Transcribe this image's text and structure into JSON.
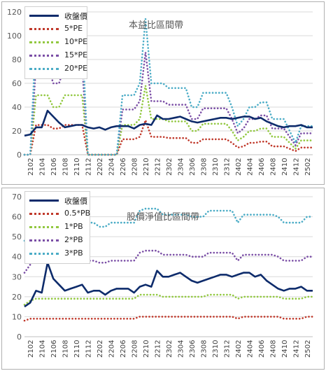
{
  "chart_data": [
    {
      "type": "line",
      "title": "本益比區間帶",
      "ylim": [
        0,
        120
      ],
      "yticks": [
        0,
        20,
        40,
        60,
        80,
        100,
        120
      ],
      "grid": true,
      "legend_position": "top-left",
      "x": [
        "2101",
        "2102",
        "2103",
        "2104",
        "2105",
        "2106",
        "2107",
        "2108",
        "2109",
        "2110",
        "2111",
        "2112",
        "2201",
        "2202",
        "2203",
        "2204",
        "2205",
        "2206",
        "2207",
        "2208",
        "2209",
        "2210",
        "2211",
        "2212",
        "2301",
        "2302",
        "2303",
        "2304",
        "2305",
        "2306",
        "2307",
        "2308",
        "2309",
        "2310",
        "2311",
        "2312",
        "2401",
        "2402",
        "2403",
        "2404",
        "2405",
        "2406",
        "2407",
        "2408",
        "2409",
        "2410",
        "2411",
        "2412",
        "2501",
        "2502",
        "2503"
      ],
      "x_tick_labels": [
        "2102",
        "2104",
        "2106",
        "2108",
        "2110",
        "2112",
        "2202",
        "2204",
        "2206",
        "2208",
        "2210",
        "2212",
        "2302",
        "2304",
        "2306",
        "2308",
        "2310",
        "2312",
        "2402",
        "2404",
        "2406",
        "2408",
        "2410",
        "2412",
        "2502"
      ],
      "series": [
        {
          "name": "收盤價",
          "color": "#0d2b6b",
          "style": "solid",
          "values": [
            16,
            17,
            23,
            23,
            37,
            32,
            27,
            23,
            24,
            25,
            25,
            23,
            22,
            23,
            21,
            23,
            24,
            24,
            24,
            22,
            25,
            26,
            25,
            33,
            30,
            30,
            31,
            32,
            30,
            28,
            27,
            28,
            29,
            30,
            31,
            31,
            30,
            31,
            32,
            32,
            30,
            31,
            28,
            26,
            24,
            23,
            24,
            24,
            25,
            23,
            23
          ]
        },
        {
          "name": "5*PE",
          "color": "#c0392b",
          "style": "dotted",
          "values": [
            0,
            0,
            25,
            25,
            25,
            22,
            22,
            25,
            25,
            25,
            25,
            0,
            0,
            0,
            0,
            0,
            0,
            13,
            13,
            13,
            15,
            29,
            15,
            15,
            15,
            14,
            14,
            14,
            14,
            10,
            10,
            13,
            13,
            13,
            13,
            13,
            10,
            6,
            7,
            10,
            10,
            11,
            11,
            7,
            7,
            7,
            5,
            3,
            6,
            6,
            6
          ]
        },
        {
          "name": "10*PE",
          "color": "#92c840",
          "style": "dotted",
          "values": [
            0,
            0,
            50,
            50,
            50,
            40,
            40,
            50,
            50,
            50,
            50,
            0,
            0,
            0,
            0,
            0,
            0,
            25,
            25,
            25,
            30,
            58,
            30,
            30,
            30,
            28,
            28,
            28,
            28,
            20,
            20,
            26,
            26,
            26,
            26,
            26,
            20,
            12,
            15,
            20,
            20,
            22,
            22,
            15,
            15,
            15,
            10,
            5,
            12,
            12,
            12
          ]
        },
        {
          "name": "15*PE",
          "color": "#7b4fa6",
          "style": "dotted",
          "values": [
            0,
            0,
            75,
            75,
            75,
            60,
            60,
            75,
            75,
            75,
            75,
            0,
            0,
            0,
            0,
            0,
            0,
            38,
            38,
            38,
            45,
            86,
            45,
            45,
            45,
            42,
            42,
            42,
            42,
            30,
            30,
            39,
            39,
            39,
            39,
            39,
            30,
            18,
            22,
            30,
            30,
            33,
            33,
            22,
            22,
            22,
            15,
            8,
            18,
            18,
            18
          ]
        },
        {
          "name": "20*PE",
          "color": "#4bacc6",
          "style": "dotted",
          "values": [
            0,
            0,
            100,
            100,
            100,
            80,
            80,
            100,
            100,
            100,
            100,
            0,
            0,
            0,
            0,
            0,
            0,
            50,
            50,
            50,
            60,
            114,
            60,
            60,
            60,
            56,
            56,
            56,
            56,
            40,
            40,
            52,
            52,
            52,
            52,
            52,
            40,
            24,
            30,
            40,
            40,
            44,
            44,
            30,
            30,
            30,
            20,
            10,
            24,
            24,
            24
          ]
        }
      ]
    },
    {
      "type": "line",
      "title": "股價淨值比區間帶",
      "ylim": [
        0,
        70
      ],
      "yticks": [
        0,
        10,
        20,
        30,
        40,
        50,
        60,
        70
      ],
      "grid": true,
      "legend_position": "top-left",
      "x": [
        "2101",
        "2102",
        "2103",
        "2104",
        "2105",
        "2106",
        "2107",
        "2108",
        "2109",
        "2110",
        "2111",
        "2112",
        "2201",
        "2202",
        "2203",
        "2204",
        "2205",
        "2206",
        "2207",
        "2208",
        "2209",
        "2210",
        "2211",
        "2212",
        "2301",
        "2302",
        "2303",
        "2304",
        "2305",
        "2306",
        "2307",
        "2308",
        "2309",
        "2310",
        "2311",
        "2312",
        "2401",
        "2402",
        "2403",
        "2404",
        "2405",
        "2406",
        "2407",
        "2408",
        "2409",
        "2410",
        "2411",
        "2412",
        "2501",
        "2502",
        "2503"
      ],
      "x_tick_labels": [
        "2102",
        "2104",
        "2106",
        "2108",
        "2110",
        "2112",
        "2202",
        "2204",
        "2206",
        "2208",
        "2210",
        "2212",
        "2302",
        "2304",
        "2306",
        "2308",
        "2310",
        "2312",
        "2402",
        "2404",
        "2406",
        "2408",
        "2410",
        "2412",
        "2502"
      ],
      "series": [
        {
          "name": "收盤價",
          "color": "#0d2b6b",
          "style": "solid",
          "values": [
            15,
            17,
            23,
            22,
            37,
            29,
            26,
            23,
            24,
            25,
            26,
            22,
            23,
            23,
            21,
            23,
            24,
            24,
            24,
            22,
            25,
            26,
            25,
            33,
            30,
            30,
            31,
            32,
            30,
            28,
            27,
            28,
            29,
            30,
            31,
            31,
            30,
            31,
            32,
            32,
            30,
            31,
            28,
            26,
            24,
            23,
            24,
            24,
            25,
            23,
            23
          ]
        },
        {
          "name": "0.5*PB",
          "color": "#c0392b",
          "style": "dotted",
          "values": [
            8,
            9,
            9,
            9,
            9,
            9,
            9,
            9,
            9,
            9,
            9,
            9,
            9,
            9,
            9,
            9,
            9,
            9,
            9,
            9,
            10,
            10,
            10,
            10,
            10,
            10,
            10,
            10,
            10,
            10,
            10,
            10,
            10,
            10,
            10,
            10,
            10,
            9,
            10,
            10,
            10,
            10,
            10,
            10,
            10,
            9,
            9,
            9,
            9,
            10,
            10
          ]
        },
        {
          "name": "1*PB",
          "color": "#92c840",
          "style": "dotted",
          "values": [
            16,
            18,
            19,
            19,
            19,
            19,
            19,
            19,
            19,
            19,
            19,
            19,
            19,
            19,
            19,
            19,
            19,
            19,
            19,
            19,
            21,
            21,
            21,
            21,
            20,
            20,
            20,
            20,
            20,
            20,
            20,
            20,
            21,
            21,
            21,
            21,
            21,
            19,
            20,
            20,
            20,
            20,
            20,
            20,
            20,
            19,
            19,
            19,
            19,
            20,
            20
          ]
        },
        {
          "name": "2*PB",
          "color": "#7b4fa6",
          "style": "dotted",
          "values": [
            32,
            36,
            38,
            38,
            38,
            38,
            38,
            38,
            38,
            38,
            38,
            38,
            38,
            37,
            37,
            38,
            38,
            38,
            38,
            38,
            42,
            43,
            43,
            43,
            41,
            41,
            41,
            41,
            41,
            40,
            40,
            40,
            42,
            42,
            42,
            42,
            42,
            38,
            41,
            41,
            41,
            41,
            41,
            41,
            40,
            38,
            38,
            38,
            38,
            40,
            40
          ]
        },
        {
          "name": "3*PB",
          "color": "#4bacc6",
          "style": "dotted",
          "values": [
            48,
            54,
            57,
            57,
            57,
            57,
            57,
            57,
            57,
            57,
            57,
            57,
            57,
            55,
            55,
            57,
            57,
            57,
            57,
            57,
            63,
            64,
            64,
            64,
            61,
            61,
            61,
            61,
            61,
            60,
            60,
            60,
            63,
            63,
            63,
            63,
            63,
            57,
            61,
            61,
            61,
            61,
            61,
            61,
            60,
            57,
            57,
            57,
            57,
            60,
            60
          ]
        }
      ]
    }
  ]
}
